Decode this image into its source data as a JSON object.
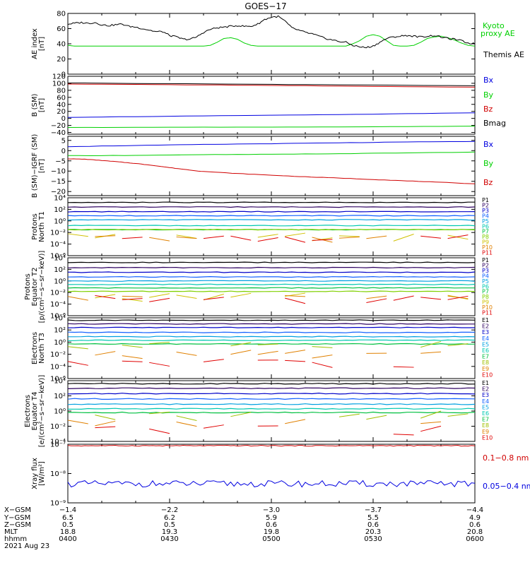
{
  "title": "GOES−17",
  "colors": {
    "black": "#000000",
    "green": "#00d000",
    "blue": "#0000e0",
    "red": "#d00000"
  },
  "channel_colors_p": [
    "#000000",
    "#2d0060",
    "#0000c8",
    "#1060ff",
    "#00a0e0",
    "#00c8b0",
    "#00c040",
    "#80d000",
    "#d0c000",
    "#e08000",
    "#e00000"
  ],
  "channel_colors_e": [
    "#000000",
    "#2d0060",
    "#0000c8",
    "#1060ff",
    "#00a0e0",
    "#00c8b0",
    "#00c040",
    "#a0c000",
    "#e08000",
    "#e00000",
    "#c00000"
  ],
  "chart_data": [
    {
      "type": "line",
      "panel": "AE index",
      "ylabel": "AE index [nT]",
      "ylim": [
        0,
        80
      ],
      "yticks": [
        "0",
        "20",
        "40",
        "60",
        "80"
      ],
      "series": [
        {
          "name": "Kyoto proxy AE",
          "color": "green",
          "x": [
            0,
            2,
            4,
            6,
            8,
            10,
            12,
            14,
            16,
            18,
            20,
            22,
            24,
            26,
            28,
            30,
            32,
            34,
            36,
            38,
            40,
            42,
            44,
            46,
            48,
            50,
            52,
            54,
            56,
            58,
            60,
            62,
            64,
            66,
            68,
            70,
            72,
            74,
            76,
            78,
            80,
            82,
            84,
            86,
            88,
            90,
            92,
            94,
            96,
            98,
            100,
            102,
            104,
            106,
            108,
            110,
            112,
            114,
            116,
            118,
            120
          ],
          "y": [
            38,
            37,
            37,
            37,
            37,
            37,
            37,
            37,
            37,
            37,
            37,
            37,
            37,
            37,
            37,
            37,
            37,
            37,
            37,
            37,
            37,
            38,
            42,
            47,
            48,
            46,
            41,
            38,
            37,
            37,
            37,
            37,
            37,
            37,
            37,
            37,
            37,
            37,
            37,
            37,
            37,
            37,
            40,
            44,
            50,
            52,
            50,
            44,
            38,
            37,
            37,
            38,
            42,
            47,
            49,
            50,
            48,
            45,
            41,
            38,
            37
          ]
        },
        {
          "name": "Themis AE",
          "color": "black",
          "x": [
            0,
            2,
            4,
            6,
            8,
            10,
            12,
            14,
            16,
            18,
            20,
            22,
            24,
            26,
            28,
            30,
            32,
            34,
            36,
            38,
            40,
            42,
            44,
            46,
            48,
            50,
            52,
            54,
            56,
            58,
            60,
            62,
            64,
            66,
            68,
            70,
            72,
            74,
            76,
            78,
            80,
            82,
            84,
            86,
            88,
            90,
            92,
            94,
            96,
            98,
            100,
            102,
            104,
            106,
            108,
            110,
            112,
            114,
            116,
            118,
            120
          ],
          "y": [
            66,
            67,
            68,
            67,
            68,
            65,
            64,
            65,
            66,
            63,
            62,
            60,
            58,
            56,
            56,
            51,
            49,
            46,
            46,
            49,
            55,
            59,
            61,
            62,
            63,
            64,
            63,
            63,
            66,
            72,
            75,
            76,
            70,
            61,
            58,
            55,
            53,
            50,
            47,
            45,
            43,
            42,
            38,
            36,
            35,
            37,
            42,
            47,
            49,
            50,
            51,
            50,
            49,
            50,
            51,
            49,
            47,
            46,
            44,
            41,
            40
          ]
        }
      ]
    },
    {
      "type": "line",
      "panel": "B (SM)",
      "ylabel": "B (SM) [nT]",
      "ylim": [
        -45,
        120
      ],
      "yticks": [
        "120",
        "100",
        "80",
        "60",
        "40",
        "20",
        "0",
        "−20",
        "−40"
      ],
      "series": [
        {
          "name": "Bx",
          "color": "blue",
          "x": [
            0,
            30,
            60,
            90,
            120
          ],
          "y": [
            3,
            6,
            9,
            12,
            16
          ]
        },
        {
          "name": "By",
          "color": "green",
          "x": [
            0,
            30,
            60,
            90,
            120
          ],
          "y": [
            -26,
            -25,
            -25,
            -24,
            -22
          ]
        },
        {
          "name": "Bz",
          "color": "red",
          "x": [
            0,
            30,
            60,
            90,
            120
          ],
          "y": [
            98,
            96,
            94,
            91,
            89
          ]
        },
        {
          "name": "Bmag",
          "color": "black",
          "x": [
            0,
            30,
            60,
            90,
            120
          ],
          "y": [
            101,
            99,
            97,
            95,
            93
          ]
        }
      ]
    },
    {
      "type": "line",
      "panel": "B (SM)−IGRF (SM)",
      "ylabel": "B (SM)−IGRF (SM) [nT]",
      "ylim": [
        -22,
        7
      ],
      "yticks": [
        "5",
        "0",
        "−5",
        "−10",
        "−15",
        "−20"
      ],
      "series": [
        {
          "name": "Bx",
          "color": "blue",
          "x": [
            0,
            20,
            40,
            60,
            80,
            100,
            120
          ],
          "y": [
            2,
            2.5,
            3,
            3.4,
            3.8,
            4.2,
            4.5
          ]
        },
        {
          "name": "By",
          "color": "green",
          "x": [
            0,
            20,
            40,
            60,
            80,
            100,
            120
          ],
          "y": [
            -2.5,
            -2.3,
            -2,
            -1.8,
            -1.5,
            -1.1,
            -0.7
          ]
        },
        {
          "name": "Bz",
          "color": "red",
          "x": [
            0,
            5,
            10,
            15,
            20,
            25,
            30,
            35,
            40,
            50,
            60,
            70,
            80,
            90,
            100,
            110,
            120
          ],
          "y": [
            -4,
            -4.2,
            -4.8,
            -5.5,
            -6.3,
            -7.2,
            -8.3,
            -9.3,
            -10.2,
            -11.2,
            -12,
            -12.8,
            -13.4,
            -14.1,
            -14.8,
            -15.5,
            -16.2
          ]
        }
      ]
    },
    {
      "type": "line",
      "panel": "Protons North T1",
      "ylabel": "Protons North T1",
      "log": true,
      "ylim": [
        -6,
        4
      ],
      "yticks": [
        "10⁴",
        "10²",
        "10⁰",
        "10⁻²",
        "10⁻⁴",
        "10⁻⁶"
      ],
      "series": [
        {
          "name": "P1",
          "level": 3.2
        },
        {
          "name": "P2",
          "level": 2.4
        },
        {
          "name": "P3",
          "level": 1.6
        },
        {
          "name": "P4",
          "level": 0.9
        },
        {
          "name": "P5",
          "level": 0.2
        },
        {
          "name": "P6",
          "level": -0.8
        },
        {
          "name": "P7",
          "level": -1.5
        },
        {
          "name": "P8",
          "level": -1.5
        },
        {
          "name": "P9",
          "level": -2.8
        },
        {
          "name": "P10",
          "level": -3.0
        },
        {
          "name": "P11",
          "level": -3.0
        }
      ]
    },
    {
      "type": "line",
      "panel": "Protons Equator T2",
      "ylabel": "Protons Equator T2 [p/(cm²−s−sr−keV)]",
      "log": true,
      "ylim": [
        -6,
        4
      ],
      "yticks": [
        "10⁴",
        "10²",
        "10⁰",
        "10⁻²",
        "10⁻⁴",
        "10⁻⁶"
      ],
      "series": [
        {
          "name": "P1",
          "level": 3.2
        },
        {
          "name": "P2",
          "level": 2.3
        },
        {
          "name": "P3",
          "level": 1.5
        },
        {
          "name": "P4",
          "level": 0.7
        },
        {
          "name": "P5",
          "level": 0.0
        },
        {
          "name": "P6",
          "level": -0.6
        },
        {
          "name": "P7",
          "level": -1.2
        },
        {
          "name": "P8",
          "level": -1.8
        },
        {
          "name": "P9",
          "level": -2.8
        },
        {
          "name": "P10",
          "level": -3.0
        },
        {
          "name": "P11",
          "level": -3.2
        }
      ]
    },
    {
      "type": "line",
      "panel": "Electrons North T3",
      "ylabel": "Electrons North T3",
      "log": true,
      "ylim": [
        -6,
        4
      ],
      "yticks": [
        "10⁴",
        "10²",
        "10⁰",
        "10⁻²",
        "10⁻⁴",
        "10⁻⁶"
      ],
      "series": [
        {
          "name": "E1",
          "level": 3.6
        },
        {
          "name": "E2",
          "level": 3.0
        },
        {
          "name": "E3",
          "level": 2.4
        },
        {
          "name": "E4",
          "level": 1.6
        },
        {
          "name": "E5",
          "level": 0.9
        },
        {
          "name": "E6",
          "level": 0.3
        },
        {
          "name": "E7",
          "level": -0.3
        },
        {
          "name": "E8",
          "level": -0.5
        },
        {
          "name": "E9",
          "level": -2.0
        },
        {
          "name": "E10",
          "level": -3.5
        }
      ]
    },
    {
      "type": "line",
      "panel": "Electrons Equator T4",
      "ylabel": "Electrons Equator T4 [e/(cm²−s−sr−keV)]",
      "log": true,
      "ylim": [
        -4,
        4
      ],
      "yticks": [
        "10⁴",
        "10²",
        "10⁰",
        "10⁻²",
        "10⁻⁴"
      ],
      "series": [
        {
          "name": "E1",
          "level": 3.6
        },
        {
          "name": "E2",
          "level": 3.0
        },
        {
          "name": "E3",
          "level": 2.3
        },
        {
          "name": "E4",
          "level": 1.6
        },
        {
          "name": "E5",
          "level": 0.9
        },
        {
          "name": "E6",
          "level": 0.3
        },
        {
          "name": "E7",
          "level": -0.2
        },
        {
          "name": "E8",
          "level": -0.6
        },
        {
          "name": "E9",
          "level": -1.8
        },
        {
          "name": "E10",
          "level": -2.5
        }
      ]
    },
    {
      "type": "line",
      "panel": "Xray flux",
      "ylabel": "Xray flux [W/m²]",
      "log": true,
      "ylim": [
        -9,
        -7
      ],
      "yticks": [
        "10⁻⁷",
        "10⁻⁸",
        "10⁻⁹"
      ],
      "series": [
        {
          "name": "0.1−0.8 nm",
          "color": "red",
          "level": -7.05
        },
        {
          "name": "0.05−0.4 nm",
          "color": "blue",
          "level": -8.35
        }
      ]
    }
  ],
  "panel_labels": {
    "ae": [
      "Kyoto",
      "proxy AE",
      "Themis AE"
    ],
    "bsm": [
      "Bx",
      "By",
      "Bz",
      "Bmag"
    ],
    "bigrf": [
      "Bx",
      "By",
      "Bz"
    ],
    "p1": [
      "P1",
      "P2",
      "P3",
      "P4",
      "P5",
      "P6",
      "P7",
      "P8",
      "P9",
      "P10",
      "P11"
    ],
    "p2": [
      "P1",
      "P2",
      "P3",
      "P4",
      "P5",
      "P6",
      "P7",
      "P8",
      "P9",
      "P10",
      "P11"
    ],
    "e3": [
      "E1",
      "E2",
      "E3",
      "E4",
      "E5",
      "E6",
      "E7",
      "E8",
      "E9",
      "E10"
    ],
    "e4": [
      "E1",
      "E2",
      "E3",
      "E4",
      "E5",
      "E6",
      "E7",
      "E8",
      "E9",
      "E10"
    ],
    "xray": [
      "0.1−0.8 nm",
      "0.05−0.4 nm"
    ]
  },
  "ylabels": {
    "ae": [
      "AE index",
      "[nT]"
    ],
    "bsm": [
      "B (SM)",
      "[nT]"
    ],
    "bigrf": [
      "B (SM)−IGRF (SM)",
      "[nT]"
    ],
    "p1": [
      "Protons",
      "North T1"
    ],
    "p2": [
      "Protons",
      "Equator T2",
      "[p/(cm²−s−sr−keV)]"
    ],
    "e3": [
      "Electrons",
      "North T3"
    ],
    "e4": [
      "Electrons",
      "Equator T4",
      "[e/(cm²−s−sr−keV)]"
    ],
    "xray": [
      "Xray flux",
      "[W/m²]"
    ]
  },
  "yticks": {
    "ae": [
      "80",
      "60",
      "40",
      "20",
      "0"
    ],
    "bsm": [
      "120",
      "100",
      "80",
      "60",
      "40",
      "20",
      "0",
      "−20",
      "−40"
    ],
    "bigrf": [
      "5",
      "0",
      "−5",
      "−10",
      "−15",
      "−20"
    ],
    "p1": [
      "10⁴",
      "10²",
      "10⁰",
      "10⁻²",
      "10⁻⁴",
      "10⁻⁶"
    ],
    "p2": [
      "10⁴",
      "10²",
      "10⁰",
      "10⁻²",
      "10⁻⁴",
      "10⁻⁶"
    ],
    "e3": [
      "10⁴",
      "10²",
      "10⁰",
      "10⁻²",
      "10⁻⁴",
      "10⁻⁶"
    ],
    "e4": [
      "10⁴",
      "10²",
      "10⁰",
      "10⁻²",
      "10⁻⁴"
    ],
    "xray": [
      "10⁻⁷",
      "10⁻⁸",
      "10⁻⁹"
    ]
  },
  "xaxis": {
    "row_labels": [
      "X−GSM",
      "Y−GSM",
      "Z−GSM",
      "MLT",
      "hhmm"
    ],
    "columns": [
      [
        "−1.4",
        "6.5",
        "0.5",
        "18.8",
        "0400"
      ],
      [
        "−2.2",
        "6.2",
        "0.5",
        "19.3",
        "0430"
      ],
      [
        "−3.0",
        "5.9",
        "0.6",
        "19.8",
        "0500"
      ],
      [
        "−3.7",
        "5.5",
        "0.6",
        "20.3",
        "0530"
      ],
      [
        "−4.4",
        "4.9",
        "0.6",
        "20.8",
        "0600"
      ]
    ],
    "date": "2021 Aug 23"
  }
}
